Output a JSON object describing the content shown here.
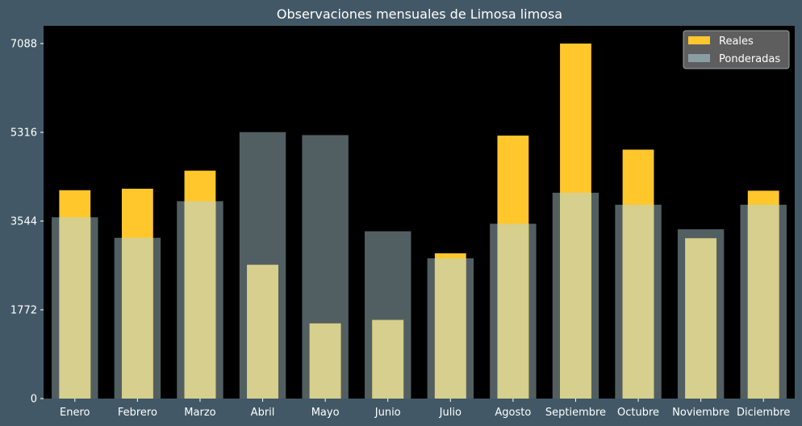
{
  "chart_data": {
    "type": "bar",
    "title": "Observaciones mensuales de Limosa limosa",
    "xlabel": "",
    "ylabel": "",
    "categories": [
      "Enero",
      "Febrero",
      "Marzo",
      "Abril",
      "Mayo",
      "Junio",
      "Julio",
      "Agosto",
      "Septiembre",
      "Octubre",
      "Noviembre",
      "Diciembre"
    ],
    "series": [
      {
        "name": "Reales",
        "color": "#ffc72c",
        "values": [
          4160,
          4190,
          4550,
          2670,
          1500,
          1570,
          2900,
          5250,
          7088,
          4970,
          3200,
          4150
        ]
      },
      {
        "name": "Ponderadas",
        "color": "#899ea3",
        "values": [
          3620,
          3210,
          3940,
          5320,
          5260,
          3340,
          2800,
          3490,
          4110,
          3870,
          3380,
          3870
        ]
      }
    ],
    "overlap_color": "#d6cf8d",
    "yticks": [
      0,
      1772,
      3544,
      5316,
      7088
    ],
    "ylim": [
      0,
      7442
    ],
    "grid": false,
    "legend": "top-right",
    "colors": {
      "background": "#425866",
      "plot_area": "#000000",
      "text": "#ffffff"
    }
  }
}
